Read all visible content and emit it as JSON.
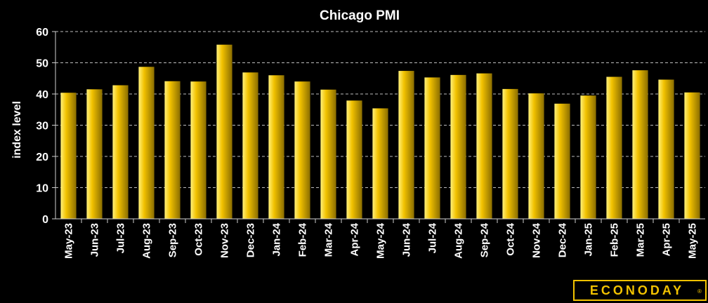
{
  "chart_data": {
    "type": "bar",
    "title": "Chicago PMI",
    "xlabel": "",
    "ylabel": "index level",
    "ylim": [
      0,
      60
    ],
    "yticks": [
      0,
      10,
      20,
      30,
      40,
      50,
      60
    ],
    "grid": true,
    "categories": [
      "May-23",
      "Jun-23",
      "Jul-23",
      "Aug-23",
      "Sep-23",
      "Oct-23",
      "Nov-23",
      "Dec-23",
      "Jan-24",
      "Feb-24",
      "Mar-24",
      "Apr-24",
      "May-24",
      "Jun-24",
      "Jul-24",
      "Aug-24",
      "Sep-24",
      "Oct-24",
      "Nov-24",
      "Dec-24",
      "Jan-25",
      "Feb-25",
      "Mar-25",
      "Apr-25",
      "May-25"
    ],
    "values": [
      40.4,
      41.5,
      42.8,
      48.7,
      44.1,
      44.0,
      55.8,
      46.9,
      46.0,
      44.0,
      41.4,
      37.9,
      35.4,
      47.4,
      45.3,
      46.1,
      46.6,
      41.6,
      40.2,
      36.9,
      39.5,
      45.5,
      47.6,
      44.6,
      40.5
    ],
    "bar_color": "#f2c200",
    "bar_color_dark": "#8a6d00"
  },
  "brand": {
    "logo_text": "ECONODAY",
    "logo_mark": "®"
  }
}
